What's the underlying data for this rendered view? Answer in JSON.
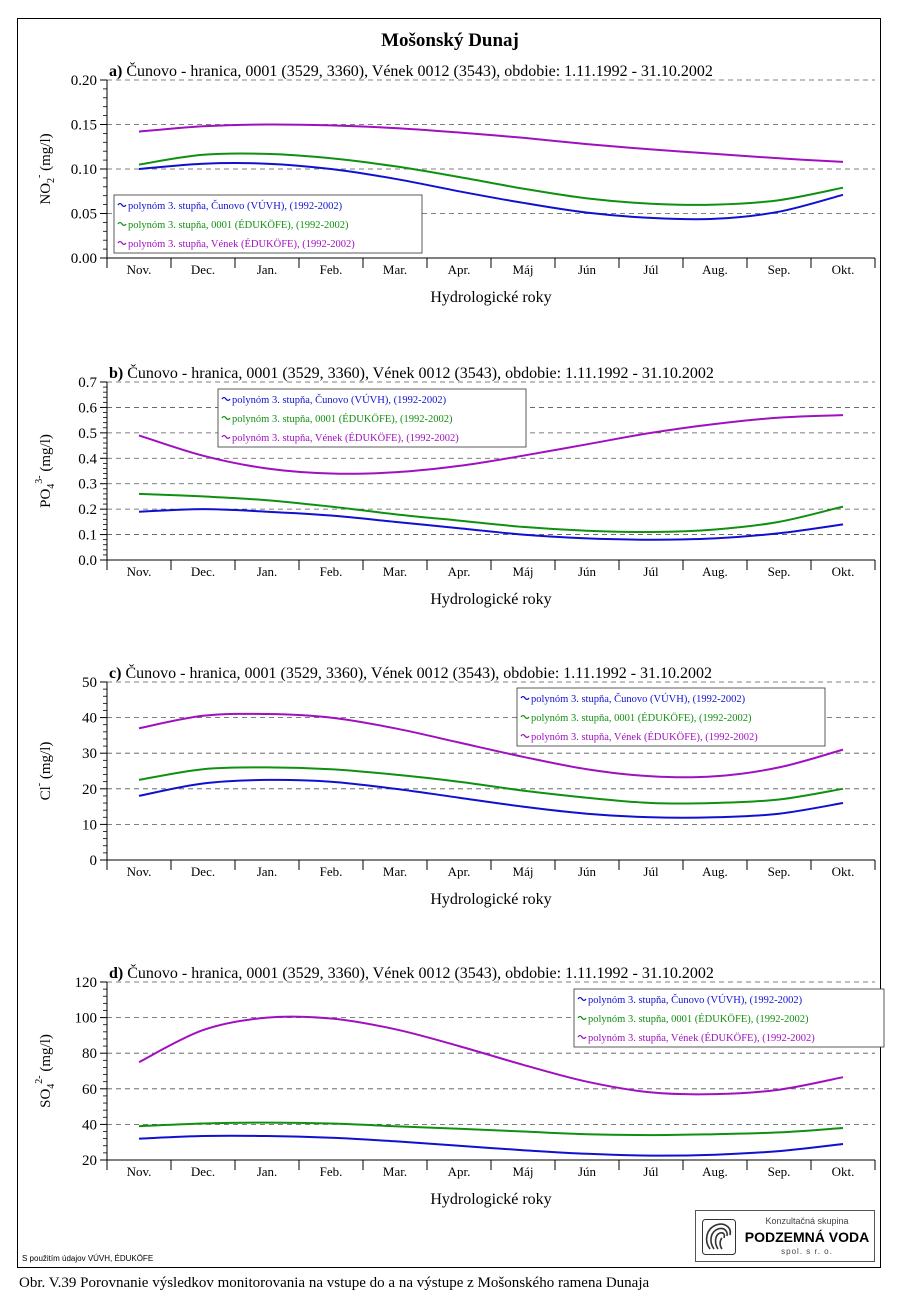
{
  "page": {
    "title": "Mošonský Dunaj",
    "caption": "Obr. V.39 Porovnanie výsledkov monitorovania na vstupe do a na výstupe z Mošonského ramena Dunaja",
    "footnote": "S použitím údajov VÚVH, ÉDUKÖFE",
    "logo": {
      "top": "Konzultačná skupina",
      "name": "PODZEMNÁ VODA",
      "sub": "spol. s r. o."
    }
  },
  "chart_data": [
    {
      "id": "a",
      "type": "line",
      "title_prefix": "a)",
      "title": "Čunovo - hranica, 0001 (3529, 3360), Vének 0012 (3543), obdobie: 1.11.1992 - 31.10.2002",
      "ylabel": "NO2- (mg/l)",
      "xlabel": "Hydrologické roky",
      "ylim": [
        0,
        0.2
      ],
      "yticks": [
        "0.00",
        "0.05",
        "0.10",
        "0.15",
        "0.20"
      ],
      "grid": "horizontal dashed",
      "legend_position": "left",
      "categories": [
        "Nov.",
        "Dec.",
        "Jan.",
        "Feb.",
        "Mar.",
        "Apr.",
        "Máj",
        "Jún",
        "Júl",
        "Aug.",
        "Sep.",
        "Okt."
      ],
      "series": [
        {
          "name": "polynóm 3. stupňa, Čunovo (VÚVH), (1992-2002)",
          "color": "#1010d0",
          "values": [
            0.1,
            0.106,
            0.106,
            0.1,
            0.089,
            0.075,
            0.062,
            0.051,
            0.045,
            0.044,
            0.052,
            0.071
          ]
        },
        {
          "name": "polynóm 3. stupňa, 0001 (ÉDUKÖFE), (1992-2002)",
          "color": "#109010",
          "values": [
            0.105,
            0.116,
            0.117,
            0.112,
            0.103,
            0.091,
            0.078,
            0.067,
            0.061,
            0.06,
            0.065,
            0.079
          ]
        },
        {
          "name": "polynóm 3. stupňa, Vének (ÉDUKÖFE), (1992-2002)",
          "color": "#a010c0",
          "values": [
            0.142,
            0.148,
            0.15,
            0.149,
            0.146,
            0.141,
            0.135,
            0.128,
            0.122,
            0.117,
            0.112,
            0.108
          ]
        }
      ]
    },
    {
      "id": "b",
      "type": "line",
      "title_prefix": "b)",
      "title": "Čunovo - hranica, 0001 (3529, 3360), Vének 0012 (3543), obdobie: 1.11.1992 - 31.10.2002",
      "ylabel": "PO4 3- (mg/l)",
      "xlabel": "Hydrologické roky",
      "ylim": [
        0,
        0.7
      ],
      "yticks": [
        "0.0",
        "0.1",
        "0.2",
        "0.3",
        "0.4",
        "0.5",
        "0.6",
        "0.7"
      ],
      "grid": "horizontal dashed",
      "legend_position": "top-left",
      "categories": [
        "Nov.",
        "Dec.",
        "Jan.",
        "Feb.",
        "Mar.",
        "Apr.",
        "Máj",
        "Jún",
        "Júl",
        "Aug.",
        "Sep.",
        "Okt."
      ],
      "series": [
        {
          "name": "polynóm 3. stupňa, Čunovo (VÚVH), (1992-2002)",
          "color": "#1010d0",
          "values": [
            0.19,
            0.2,
            0.19,
            0.175,
            0.15,
            0.125,
            0.1,
            0.085,
            0.08,
            0.085,
            0.105,
            0.14
          ]
        },
        {
          "name": "polynóm 3. stupňa, 0001 (ÉDUKÖFE), (1992-2002)",
          "color": "#109010",
          "values": [
            0.26,
            0.25,
            0.235,
            0.21,
            0.18,
            0.155,
            0.13,
            0.115,
            0.11,
            0.12,
            0.15,
            0.21
          ]
        },
        {
          "name": "polynóm 3. stupňa, Vének (ÉDUKÖFE), (1992-2002)",
          "color": "#a010c0",
          "values": [
            0.49,
            0.41,
            0.36,
            0.34,
            0.345,
            0.37,
            0.41,
            0.455,
            0.5,
            0.535,
            0.56,
            0.57
          ]
        }
      ]
    },
    {
      "id": "c",
      "type": "line",
      "title_prefix": "c)",
      "title": "Čunovo - hranica, 0001 (3529, 3360), Vének 0012 (3543), obdobie: 1.11.1992 - 31.10.2002",
      "ylabel": "Cl- (mg/l)",
      "xlabel": "Hydrologické roky",
      "ylim": [
        0,
        50
      ],
      "yticks": [
        "0",
        "10",
        "20",
        "30",
        "40",
        "50"
      ],
      "grid": "horizontal dashed",
      "legend_position": "top-right",
      "categories": [
        "Nov.",
        "Dec.",
        "Jan.",
        "Feb.",
        "Mar.",
        "Apr.",
        "Máj",
        "Jún",
        "Júl",
        "Aug.",
        "Sep.",
        "Okt."
      ],
      "series": [
        {
          "name": "polynóm 3. stupňa, Čunovo (VÚVH), (1992-2002)",
          "color": "#1010d0",
          "values": [
            18,
            21.5,
            22.5,
            22,
            20,
            17.5,
            15,
            13,
            12,
            12,
            13,
            16
          ]
        },
        {
          "name": "polynóm 3. stupňa, 0001 (ÉDUKÖFE), (1992-2002)",
          "color": "#109010",
          "values": [
            22.5,
            25.5,
            26,
            25.5,
            24,
            22,
            19.5,
            17.5,
            16,
            16,
            17,
            20
          ]
        },
        {
          "name": "polynóm 3. stupňa, Vének (ÉDUKÖFE), (1992-2002)",
          "color": "#a010c0",
          "values": [
            37,
            40.5,
            41,
            40,
            37,
            33,
            29,
            25.5,
            23.5,
            23.5,
            26,
            31
          ]
        }
      ]
    },
    {
      "id": "d",
      "type": "line",
      "title_prefix": "d)",
      "title": "Čunovo - hranica, 0001 (3529, 3360), Vének 0012 (3543), obdobie: 1.11.1992 - 31.10.2002",
      "ylabel": "SO4 2- (mg/l)",
      "xlabel": "Hydrologické roky",
      "ylim": [
        20,
        120
      ],
      "yticks": [
        "20",
        "40",
        "60",
        "80",
        "100",
        "120"
      ],
      "grid": "horizontal dashed",
      "legend_position": "top-right",
      "categories": [
        "Nov.",
        "Dec.",
        "Jan.",
        "Feb.",
        "Mar.",
        "Apr.",
        "Máj",
        "Jún",
        "Júl",
        "Aug.",
        "Sep.",
        "Okt."
      ],
      "series": [
        {
          "name": "polynóm 3. stupňa, Čunovo (VÚVH), (1992-2002)",
          "color": "#1010d0",
          "values": [
            32,
            33.5,
            33.5,
            32.5,
            30.5,
            28,
            25.5,
            23.5,
            22.5,
            23,
            25,
            29
          ]
        },
        {
          "name": "polynóm 3. stupňa, 0001 (ÉDUKÖFE), (1992-2002)",
          "color": "#109010",
          "values": [
            39,
            40.5,
            41,
            40.5,
            39,
            37.5,
            36,
            34.5,
            34,
            34.5,
            35.5,
            38
          ]
        },
        {
          "name": "polynóm 3. stupňa, Vének (ÉDUKÖFE), (1992-2002)",
          "color": "#a010c0",
          "values": [
            75,
            93,
            100,
            99.5,
            93.5,
            84,
            73.5,
            64,
            58,
            57,
            59.5,
            66.5
          ]
        }
      ]
    }
  ]
}
